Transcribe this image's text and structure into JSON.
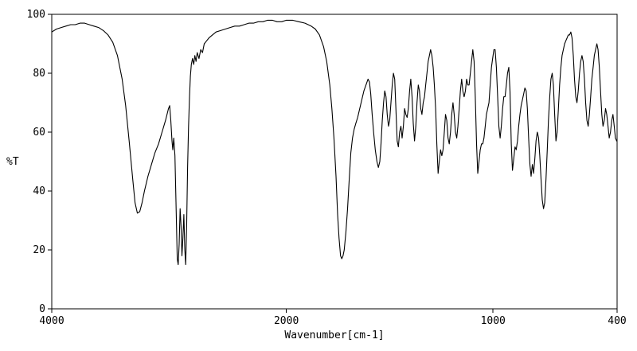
{
  "chart_data": {
    "type": "line",
    "title": "",
    "xlabel": "Wavenumber[cm-1]",
    "ylabel": "%T",
    "line_color": "#000000",
    "background_color": "#ffffff",
    "grid": false,
    "legend": false,
    "x_axis": {
      "reversed": true,
      "ticks": [
        4000,
        2000,
        1000,
        400
      ],
      "tick_labels": [
        "4000",
        "2000",
        "1000",
        "400"
      ],
      "segments": [
        {
          "from": 4000,
          "to": 2000,
          "width_frac": 0.415
        },
        {
          "from": 2000,
          "to": 400,
          "width_frac": 0.585
        }
      ]
    },
    "y_axis": {
      "min": 0,
      "max": 100,
      "ticks": [
        0,
        20,
        40,
        60,
        80,
        100
      ],
      "tick_labels": [
        "0",
        "20",
        "40",
        "60",
        "80",
        "100"
      ]
    },
    "points": [
      [
        4000,
        94
      ],
      [
        3960,
        95
      ],
      [
        3920,
        95.5
      ],
      [
        3880,
        96
      ],
      [
        3840,
        96.5
      ],
      [
        3800,
        96.5
      ],
      [
        3760,
        97
      ],
      [
        3720,
        97
      ],
      [
        3680,
        96.5
      ],
      [
        3640,
        96
      ],
      [
        3600,
        95.5
      ],
      [
        3560,
        94.5
      ],
      [
        3520,
        93
      ],
      [
        3480,
        90.5
      ],
      [
        3440,
        86
      ],
      [
        3400,
        78
      ],
      [
        3370,
        69
      ],
      [
        3340,
        57
      ],
      [
        3310,
        44
      ],
      [
        3290,
        36
      ],
      [
        3270,
        32.5
      ],
      [
        3250,
        33
      ],
      [
        3230,
        36
      ],
      [
        3210,
        40
      ],
      [
        3180,
        45
      ],
      [
        3150,
        49
      ],
      [
        3120,
        53
      ],
      [
        3090,
        56
      ],
      [
        3060,
        60
      ],
      [
        3030,
        64
      ],
      [
        3005,
        68
      ],
      [
        2995,
        69
      ],
      [
        2985,
        64
      ],
      [
        2975,
        57
      ],
      [
        2968,
        54
      ],
      [
        2960,
        58
      ],
      [
        2950,
        52
      ],
      [
        2940,
        34
      ],
      [
        2930,
        17
      ],
      [
        2922,
        15
      ],
      [
        2914,
        22
      ],
      [
        2906,
        34
      ],
      [
        2898,
        28
      ],
      [
        2890,
        18
      ],
      [
        2882,
        24
      ],
      [
        2874,
        32
      ],
      [
        2866,
        20
      ],
      [
        2858,
        15
      ],
      [
        2850,
        28
      ],
      [
        2842,
        48
      ],
      [
        2834,
        62
      ],
      [
        2826,
        72
      ],
      [
        2818,
        79
      ],
      [
        2810,
        83
      ],
      [
        2800,
        85
      ],
      [
        2790,
        83
      ],
      [
        2780,
        86
      ],
      [
        2770,
        84
      ],
      [
        2760,
        87
      ],
      [
        2745,
        85
      ],
      [
        2730,
        88
      ],
      [
        2715,
        87
      ],
      [
        2700,
        90
      ],
      [
        2680,
        91
      ],
      [
        2660,
        92
      ],
      [
        2630,
        93
      ],
      [
        2600,
        94
      ],
      [
        2560,
        94.5
      ],
      [
        2520,
        95
      ],
      [
        2480,
        95.5
      ],
      [
        2440,
        96
      ],
      [
        2400,
        96
      ],
      [
        2360,
        96.5
      ],
      [
        2320,
        97
      ],
      [
        2280,
        97
      ],
      [
        2240,
        97.5
      ],
      [
        2200,
        97.5
      ],
      [
        2160,
        98
      ],
      [
        2120,
        98
      ],
      [
        2080,
        97.5
      ],
      [
        2040,
        97.5
      ],
      [
        2000,
        98
      ],
      [
        1970,
        98
      ],
      [
        1940,
        97.5
      ],
      [
        1910,
        97
      ],
      [
        1880,
        96
      ],
      [
        1860,
        95
      ],
      [
        1840,
        93
      ],
      [
        1820,
        89
      ],
      [
        1805,
        84
      ],
      [
        1790,
        76
      ],
      [
        1780,
        68
      ],
      [
        1770,
        58
      ],
      [
        1760,
        45
      ],
      [
        1752,
        32
      ],
      [
        1745,
        24
      ],
      [
        1738,
        18
      ],
      [
        1732,
        17
      ],
      [
        1726,
        18
      ],
      [
        1720,
        20
      ],
      [
        1712,
        26
      ],
      [
        1704,
        34
      ],
      [
        1696,
        44
      ],
      [
        1688,
        53
      ],
      [
        1680,
        58
      ],
      [
        1672,
        61
      ],
      [
        1664,
        63
      ],
      [
        1655,
        65
      ],
      [
        1645,
        68
      ],
      [
        1635,
        71
      ],
      [
        1625,
        74
      ],
      [
        1615,
        76
      ],
      [
        1605,
        78
      ],
      [
        1598,
        77
      ],
      [
        1592,
        73
      ],
      [
        1585,
        66
      ],
      [
        1578,
        60
      ],
      [
        1570,
        54
      ],
      [
        1562,
        50
      ],
      [
        1555,
        48
      ],
      [
        1548,
        50
      ],
      [
        1542,
        56
      ],
      [
        1536,
        64
      ],
      [
        1530,
        70
      ],
      [
        1524,
        74
      ],
      [
        1518,
        72
      ],
      [
        1512,
        66
      ],
      [
        1506,
        62
      ],
      [
        1500,
        64
      ],
      [
        1494,
        70
      ],
      [
        1488,
        76
      ],
      [
        1482,
        80
      ],
      [
        1476,
        78
      ],
      [
        1470,
        68
      ],
      [
        1464,
        57
      ],
      [
        1458,
        55
      ],
      [
        1452,
        60
      ],
      [
        1446,
        62
      ],
      [
        1440,
        58
      ],
      [
        1434,
        62
      ],
      [
        1428,
        68
      ],
      [
        1422,
        66
      ],
      [
        1416,
        65
      ],
      [
        1410,
        68
      ],
      [
        1404,
        74
      ],
      [
        1398,
        78
      ],
      [
        1392,
        72
      ],
      [
        1386,
        63
      ],
      [
        1380,
        57
      ],
      [
        1374,
        62
      ],
      [
        1368,
        70
      ],
      [
        1362,
        76
      ],
      [
        1356,
        74
      ],
      [
        1350,
        68
      ],
      [
        1344,
        66
      ],
      [
        1338,
        70
      ],
      [
        1332,
        72
      ],
      [
        1326,
        76
      ],
      [
        1320,
        80
      ],
      [
        1314,
        84
      ],
      [
        1308,
        86
      ],
      [
        1302,
        88
      ],
      [
        1296,
        86
      ],
      [
        1290,
        82
      ],
      [
        1284,
        76
      ],
      [
        1278,
        68
      ],
      [
        1272,
        56
      ],
      [
        1266,
        46
      ],
      [
        1260,
        50
      ],
      [
        1254,
        54
      ],
      [
        1248,
        52
      ],
      [
        1242,
        54
      ],
      [
        1236,
        60
      ],
      [
        1230,
        66
      ],
      [
        1224,
        64
      ],
      [
        1218,
        58
      ],
      [
        1212,
        56
      ],
      [
        1206,
        60
      ],
      [
        1200,
        66
      ],
      [
        1194,
        70
      ],
      [
        1188,
        66
      ],
      [
        1182,
        60
      ],
      [
        1176,
        58
      ],
      [
        1170,
        62
      ],
      [
        1164,
        68
      ],
      [
        1158,
        74
      ],
      [
        1152,
        78
      ],
      [
        1146,
        74
      ],
      [
        1140,
        72
      ],
      [
        1134,
        74
      ],
      [
        1128,
        78
      ],
      [
        1122,
        76
      ],
      [
        1116,
        76
      ],
      [
        1110,
        80
      ],
      [
        1104,
        84
      ],
      [
        1098,
        88
      ],
      [
        1092,
        84
      ],
      [
        1086,
        72
      ],
      [
        1080,
        56
      ],
      [
        1074,
        46
      ],
      [
        1068,
        50
      ],
      [
        1062,
        54
      ],
      [
        1056,
        56
      ],
      [
        1050,
        56
      ],
      [
        1044,
        58
      ],
      [
        1038,
        62
      ],
      [
        1032,
        66
      ],
      [
        1026,
        68
      ],
      [
        1020,
        70
      ],
      [
        1014,
        76
      ],
      [
        1008,
        82
      ],
      [
        1002,
        85
      ],
      [
        996,
        88
      ],
      [
        990,
        88
      ],
      [
        984,
        82
      ],
      [
        978,
        72
      ],
      [
        972,
        62
      ],
      [
        966,
        58
      ],
      [
        960,
        62
      ],
      [
        954,
        68
      ],
      [
        948,
        72
      ],
      [
        942,
        72
      ],
      [
        936,
        76
      ],
      [
        930,
        80
      ],
      [
        924,
        82
      ],
      [
        918,
        74
      ],
      [
        912,
        56
      ],
      [
        906,
        47
      ],
      [
        900,
        51
      ],
      [
        894,
        55
      ],
      [
        888,
        54
      ],
      [
        882,
        57
      ],
      [
        876,
        62
      ],
      [
        870,
        66
      ],
      [
        864,
        69
      ],
      [
        858,
        71
      ],
      [
        852,
        73
      ],
      [
        846,
        75
      ],
      [
        840,
        74
      ],
      [
        834,
        68
      ],
      [
        828,
        58
      ],
      [
        822,
        49
      ],
      [
        816,
        45
      ],
      [
        810,
        49
      ],
      [
        804,
        46
      ],
      [
        798,
        51
      ],
      [
        792,
        57
      ],
      [
        786,
        60
      ],
      [
        780,
        58
      ],
      [
        774,
        52
      ],
      [
        768,
        44
      ],
      [
        762,
        37
      ],
      [
        756,
        34
      ],
      [
        750,
        36
      ],
      [
        744,
        44
      ],
      [
        738,
        54
      ],
      [
        732,
        64
      ],
      [
        726,
        72
      ],
      [
        720,
        78
      ],
      [
        714,
        80
      ],
      [
        708,
        76
      ],
      [
        702,
        66
      ],
      [
        696,
        57
      ],
      [
        690,
        60
      ],
      [
        684,
        68
      ],
      [
        678,
        76
      ],
      [
        672,
        82
      ],
      [
        666,
        86
      ],
      [
        660,
        88
      ],
      [
        654,
        90
      ],
      [
        648,
        91
      ],
      [
        642,
        92
      ],
      [
        636,
        93
      ],
      [
        630,
        93
      ],
      [
        624,
        94
      ],
      [
        618,
        92
      ],
      [
        612,
        86
      ],
      [
        606,
        78
      ],
      [
        600,
        72
      ],
      [
        594,
        70
      ],
      [
        588,
        74
      ],
      [
        582,
        80
      ],
      [
        576,
        84
      ],
      [
        570,
        86
      ],
      [
        564,
        84
      ],
      [
        558,
        78
      ],
      [
        552,
        70
      ],
      [
        546,
        64
      ],
      [
        540,
        62
      ],
      [
        534,
        66
      ],
      [
        528,
        72
      ],
      [
        522,
        78
      ],
      [
        516,
        82
      ],
      [
        510,
        86
      ],
      [
        504,
        88
      ],
      [
        498,
        90
      ],
      [
        492,
        88
      ],
      [
        486,
        82
      ],
      [
        480,
        74
      ],
      [
        474,
        66
      ],
      [
        468,
        62
      ],
      [
        462,
        64
      ],
      [
        456,
        68
      ],
      [
        450,
        66
      ],
      [
        444,
        62
      ],
      [
        438,
        58
      ],
      [
        432,
        60
      ],
      [
        426,
        64
      ],
      [
        420,
        66
      ],
      [
        414,
        62
      ],
      [
        408,
        58
      ],
      [
        402,
        57
      ],
      [
        400,
        57
      ]
    ]
  }
}
